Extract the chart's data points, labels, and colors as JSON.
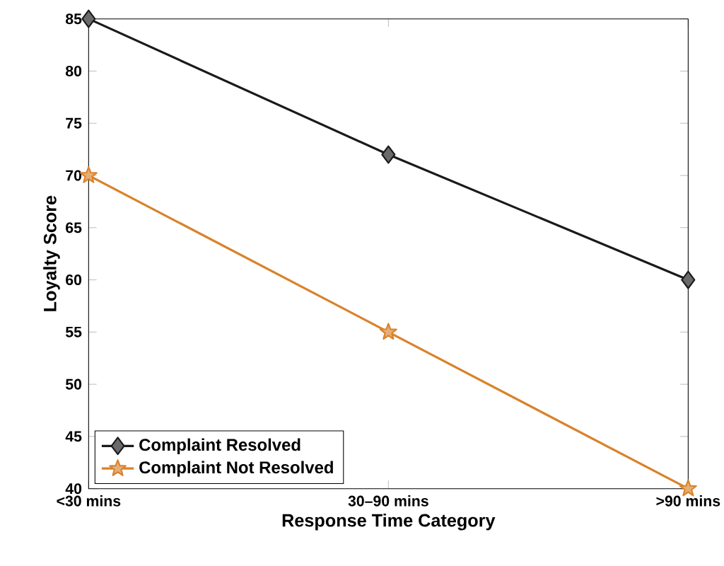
{
  "chart_data": {
    "type": "line",
    "xlabel": "Response Time Category",
    "ylabel": "Loyalty Score",
    "categories": [
      "<30 mins",
      "30–90 mins",
      ">90 mins"
    ],
    "series": [
      {
        "name": "Complaint Resolved",
        "color": "#1a1a1a",
        "values": [
          85,
          72,
          60
        ],
        "marker": "diamond"
      },
      {
        "name": "Complaint Not Resolved",
        "color": "#d9822b",
        "values": [
          70,
          55,
          40
        ],
        "marker": "star"
      }
    ],
    "ylim": [
      40,
      85
    ],
    "yticks": [
      40,
      45,
      50,
      55,
      60,
      65,
      70,
      75,
      80,
      85
    ],
    "grid": false,
    "legend": "bottom left",
    "line_style": "solid"
  }
}
